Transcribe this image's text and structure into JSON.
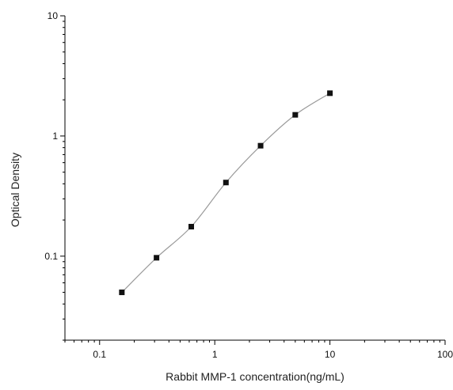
{
  "chart_data": {
    "type": "scatter",
    "title": "",
    "xlabel": "Rabbit MMP-1 concentration(ng/mL)",
    "ylabel": "Optical Density",
    "x_scale": "log",
    "y_scale": "log",
    "xlim": [
      0.05,
      100
    ],
    "ylim": [
      0.02,
      10
    ],
    "x_ticks": [
      0.1,
      1,
      10,
      100
    ],
    "x_tick_labels": [
      "0.1",
      "1",
      "10",
      "100"
    ],
    "y_ticks": [
      0.1,
      1,
      10
    ],
    "y_tick_labels": [
      "0.1",
      "1",
      "10"
    ],
    "grid": false,
    "legend": false,
    "marker_color": "#111111",
    "curve_color": "#9a9a9a",
    "series": [
      {
        "x": [
          0.156,
          0.312,
          0.625,
          1.25,
          2.5,
          5,
          10
        ],
        "y": [
          0.05,
          0.097,
          0.176,
          0.41,
          0.83,
          1.5,
          2.27
        ]
      }
    ]
  }
}
